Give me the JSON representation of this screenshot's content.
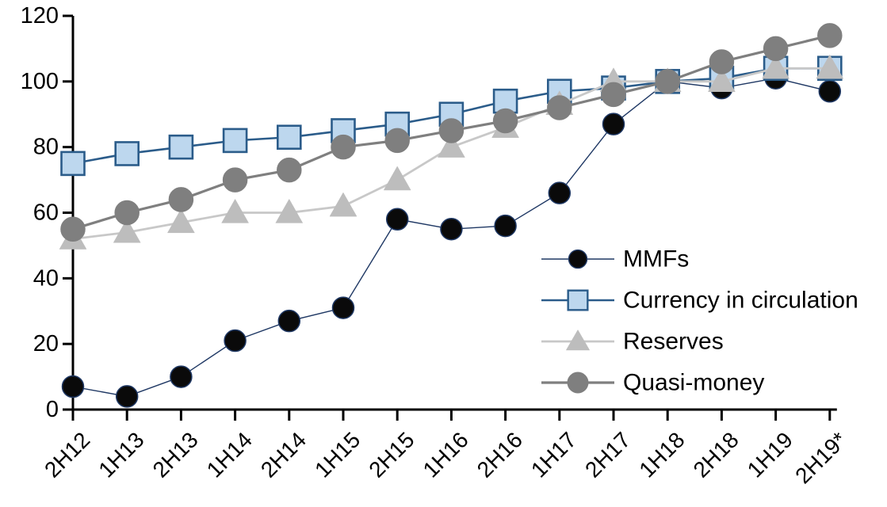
{
  "chart_data": {
    "type": "line",
    "title": "",
    "xlabel": "",
    "ylabel": "",
    "categories": [
      "2H12",
      "1H13",
      "2H13",
      "1H14",
      "2H14",
      "1H15",
      "2H15",
      "1H16",
      "2H16",
      "1H17",
      "2H17",
      "1H18",
      "2H18",
      "1H19",
      "2H19*"
    ],
    "series": [
      {
        "name": "MMFs",
        "values": [
          7,
          4,
          10,
          21,
          27,
          31,
          58,
          55,
          56,
          66,
          87,
          100,
          98,
          101,
          97
        ],
        "marker": "circle",
        "line_color": "#1f3864",
        "marker_fill": "#0a0a0a",
        "marker_stroke": "#1f3864",
        "line_width": 1.4,
        "marker_size": 27
      },
      {
        "name": "Currency in circulation",
        "values": [
          75,
          78,
          80,
          82,
          83,
          85,
          87,
          90,
          94,
          97,
          98,
          100,
          101,
          104,
          104
        ],
        "marker": "square",
        "line_color": "#2b5c8a",
        "marker_fill": "#bdd7ee",
        "marker_stroke": "#2b5c8a",
        "line_width": 2.6,
        "marker_size": 29
      },
      {
        "name": "Reserves",
        "values": [
          52,
          54,
          57,
          60,
          60,
          62,
          70,
          80,
          86,
          93,
          100,
          100,
          100,
          104,
          104
        ],
        "marker": "triangle",
        "line_color": "#c8c8c8",
        "marker_fill": "#bdbdbd",
        "marker_stroke": "#bdbdbd",
        "line_width": 2.8,
        "marker_size": 30
      },
      {
        "name": "Quasi-money",
        "values": [
          55,
          60,
          64,
          70,
          73,
          80,
          82,
          85,
          88,
          92,
          96,
          100,
          106,
          110,
          114
        ],
        "marker": "circle",
        "line_color": "#7f7f7f",
        "marker_fill": "#7f7f7f",
        "marker_stroke": "#7f7f7f",
        "line_width": 3.2,
        "marker_size": 30
      }
    ],
    "ylim": [
      0,
      120
    ],
    "ytick_step": 20,
    "yticks": [
      "0",
      "20",
      "40",
      "60",
      "80",
      "100",
      "120"
    ],
    "grid": false,
    "legend_position": "inside-right",
    "axis_color": "#000000",
    "text_color": "#000000",
    "x_label_rotation_deg": -45
  }
}
